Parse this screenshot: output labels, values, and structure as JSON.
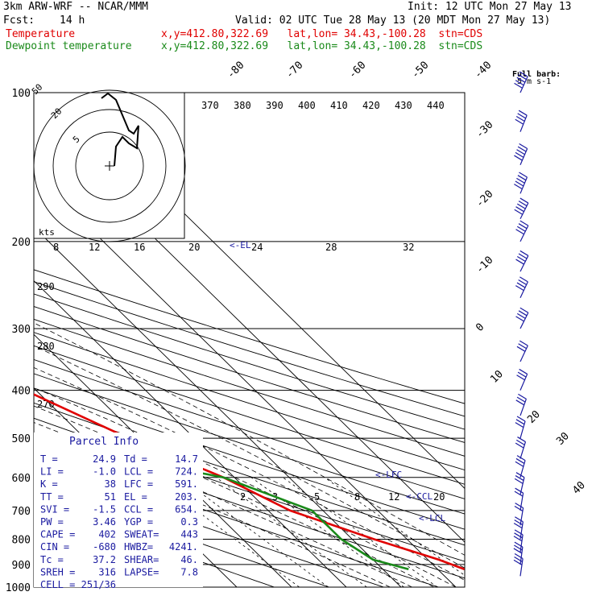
{
  "header": {
    "model": "3km ARW-WRF -- NCAR/MMM",
    "init": "Init: 12 UTC Mon 27 May 13",
    "fcst_label": "Fcst:",
    "fcst_value": "14 h",
    "valid": "Valid: 02 UTC Tue 28 May 13 (20 MDT Mon 27 May 13)",
    "temp_label": "Temperature",
    "temp_info": "x,y=412.80,322.69   lat,lon= 34.43,-100.28  stn=CDS",
    "dew_label": "Dewpoint temperature",
    "dew_info": "x,y=412.80,322.69   lat,lon= 34.43,-100.28  stn=CDS"
  },
  "colors": {
    "temperature": "#e00000",
    "dewpoint": "#1a8a1a",
    "parcel_text": "#1a1aa0",
    "grid": "#000000"
  },
  "chart_data": {
    "type": "line",
    "title": "",
    "pressure_levels": [
      100,
      200,
      300,
      400,
      500,
      600,
      700,
      800,
      900,
      1000
    ],
    "isotherms": [
      -80,
      -70,
      -60,
      -50,
      -40,
      -30,
      -20,
      -10,
      0,
      10,
      20,
      30,
      40
    ],
    "isentrope_labels": [
      "370",
      "380",
      "390",
      "400",
      "410",
      "420",
      "430",
      "440"
    ],
    "dry_adiabat_labels": [
      "290",
      "280",
      "270"
    ],
    "mixing_ratio_labels": [
      "2",
      "3",
      "5",
      "8",
      "12",
      "20"
    ],
    "theta_e_labels": [
      "8",
      "12",
      "16",
      "20",
      "24",
      "28",
      "32"
    ],
    "series": [
      {
        "name": "Temperature",
        "points": [
          [
            100,
            -32
          ],
          [
            120,
            -38
          ],
          [
            150,
            -44
          ],
          [
            180,
            -54
          ],
          [
            200,
            -53
          ],
          [
            250,
            -44
          ],
          [
            300,
            -36
          ],
          [
            400,
            -22
          ],
          [
            500,
            -12
          ],
          [
            600,
            -2
          ],
          [
            700,
            4
          ],
          [
            800,
            14
          ],
          [
            880,
            22
          ],
          [
            920,
            24.9
          ]
        ]
      },
      {
        "name": "Dewpoint temperature",
        "points": [
          [
            100,
            -70
          ],
          [
            140,
            -74
          ],
          [
            170,
            -76
          ],
          [
            190,
            -68
          ],
          [
            250,
            -62
          ],
          [
            300,
            -52
          ],
          [
            400,
            -42
          ],
          [
            500,
            -28
          ],
          [
            550,
            -16
          ],
          [
            600,
            -2
          ],
          [
            700,
            8
          ],
          [
            800,
            8
          ],
          [
            880,
            10
          ],
          [
            920,
            14.7
          ]
        ]
      }
    ],
    "annotations": [
      {
        "text": "<-EL",
        "p": 203
      },
      {
        "text": "<-LFC",
        "p": 591
      },
      {
        "text": "<-CCL",
        "p": 654
      },
      {
        "text": "<-LCL",
        "p": 724
      }
    ],
    "hodograph": {
      "rings": [
        "5",
        "20",
        "50"
      ],
      "units": "kts",
      "points": [
        [
          -5,
          42
        ],
        [
          -1,
          45
        ],
        [
          4,
          41
        ],
        [
          12,
          22
        ],
        [
          15,
          20
        ],
        [
          18,
          25
        ],
        [
          17,
          11
        ],
        [
          12,
          14
        ],
        [
          8,
          18
        ],
        [
          4,
          12
        ],
        [
          3,
          0
        ]
      ]
    },
    "wind_barb_legend": [
      "Full barb:",
      "5 m s-1"
    ],
    "wind_profile": [
      {
        "p": 100,
        "u": -10,
        "v": -22
      },
      {
        "p": 120,
        "u": -8,
        "v": -20
      },
      {
        "p": 140,
        "u": -9,
        "v": -21
      },
      {
        "p": 160,
        "u": -10,
        "v": -24
      },
      {
        "p": 180,
        "u": -11,
        "v": -22
      },
      {
        "p": 200,
        "u": -10,
        "v": -20
      },
      {
        "p": 230,
        "u": -9,
        "v": -18
      },
      {
        "p": 260,
        "u": -8,
        "v": -17
      },
      {
        "p": 300,
        "u": -8,
        "v": -16
      },
      {
        "p": 350,
        "u": -7,
        "v": -15
      },
      {
        "p": 400,
        "u": -6,
        "v": -14
      },
      {
        "p": 450,
        "u": -5,
        "v": -14
      },
      {
        "p": 500,
        "u": -4,
        "v": -14
      },
      {
        "p": 550,
        "u": -4,
        "v": -13
      },
      {
        "p": 600,
        "u": -4,
        "v": -14
      },
      {
        "p": 650,
        "u": -3,
        "v": -13
      },
      {
        "p": 700,
        "u": -2,
        "v": -12
      },
      {
        "p": 750,
        "u": -2,
        "v": -12
      },
      {
        "p": 800,
        "u": -2,
        "v": -13
      },
      {
        "p": 850,
        "u": -2,
        "v": -14
      },
      {
        "p": 900,
        "u": -2,
        "v": -15
      },
      {
        "p": 950,
        "u": -2,
        "v": -14
      }
    ]
  },
  "parcel_info": {
    "title": "Parcel Info",
    "rows": [
      [
        "T   =",
        "24.9",
        "Td =",
        "14.7"
      ],
      [
        "LI  =",
        "-1.0",
        "LCL =",
        "724."
      ],
      [
        "K   =",
        "38",
        "LFC =",
        "591."
      ],
      [
        "TT  =",
        "51",
        "EL  =",
        "203."
      ],
      [
        "SVI =",
        "-1.5",
        "CCL =",
        "654."
      ],
      [
        "PW  =",
        "3.46",
        "YGP =",
        "0.3"
      ],
      [
        "CAPE =",
        "402",
        "SWEAT=",
        "443"
      ],
      [
        "CIN  =",
        "-680",
        "HWBZ=",
        "4241."
      ],
      [
        "Tc   =",
        "37.2",
        "SHEAR=",
        "46."
      ],
      [
        "SREH =",
        "316",
        "LAPSE=",
        "7.8"
      ],
      [
        "CELL =",
        "251/36",
        "",
        ""
      ]
    ]
  }
}
